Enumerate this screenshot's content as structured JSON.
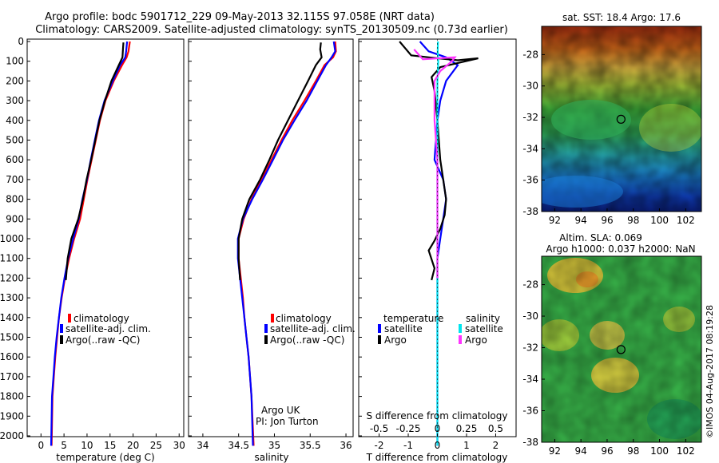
{
  "title_lines": [
    "Argo profile: bodc 5901712_229 09-May-2013 32.115S 97.058E (NRT data)",
    "Climatology: CARS2009. Satellite-adjusted climatology: synTS_20130509.nc (0.73d earlier)"
  ],
  "right_panel": {
    "sst_title": "sat. SST: 18.4  Argo: 17.6",
    "sla_title_1": "Altim. SLA: 0.069",
    "sla_title_2": "Argo h1000: 0.037 h2000: NaN",
    "timestamp": "©IMOS 04-Aug-2017 08:19:28"
  },
  "colors": {
    "climatology": "#ff0000",
    "satellite": "#0000ff",
    "argo": "#000000",
    "sal_satellite": "#00e5ee",
    "sal_argo": "#ff33ff"
  },
  "chart_data": [
    {
      "type": "line",
      "xlabel": "temperature (deg C)",
      "ylabel": "",
      "xlim": [
        -3,
        31
      ],
      "ylim": [
        2060,
        0
      ],
      "xticks": [
        0,
        5,
        10,
        15,
        20,
        25,
        30
      ],
      "yticks": [
        0,
        100,
        200,
        300,
        400,
        500,
        600,
        700,
        800,
        900,
        1000,
        1100,
        1200,
        1300,
        1400,
        1500,
        1600,
        1700,
        1800,
        1900,
        2000
      ],
      "legend_position": "lower-center",
      "legend": [
        "climatology",
        "satellite-adj. clim.",
        "Argo(..raw -QC)"
      ],
      "series": [
        {
          "name": "climatology",
          "color": "#ff0000",
          "x": [
            19.3,
            19.0,
            18.6,
            17.6,
            15.8,
            14.0,
            12.8,
            11.9,
            11.0,
            10.1,
            9.3,
            8.5,
            7.2,
            6.1,
            5.2,
            4.5,
            3.9,
            3.5,
            3.1,
            2.8,
            2.5,
            2.3
          ],
          "y": [
            0,
            50,
            80,
            120,
            200,
            300,
            400,
            500,
            600,
            700,
            800,
            900,
            1000,
            1100,
            1200,
            1300,
            1400,
            1500,
            1600,
            1700,
            1800,
            2050
          ]
        },
        {
          "name": "satellite-adj. clim.",
          "color": "#0000ff",
          "x": [
            18.7,
            18.5,
            18.3,
            17.2,
            15.6,
            13.8,
            12.6,
            11.7,
            10.8,
            10.0,
            9.0,
            8.2,
            7.0,
            5.9,
            5.1,
            4.4,
            3.9,
            3.4,
            3.0,
            2.7,
            2.4,
            2.2
          ],
          "y": [
            0,
            50,
            80,
            120,
            200,
            300,
            400,
            500,
            600,
            700,
            800,
            900,
            1000,
            1100,
            1200,
            1300,
            1400,
            1500,
            1600,
            1700,
            1800,
            2050
          ]
        },
        {
          "name": "Argo(..raw -QC)",
          "color": "#000000",
          "x": [
            17.9,
            17.8,
            17.7,
            16.9,
            15.3,
            13.9,
            12.7,
            11.8,
            10.9,
            9.9,
            9.1,
            8.1,
            6.6,
            5.8,
            5.4
          ],
          "y": [
            5,
            40,
            80,
            120,
            200,
            300,
            400,
            500,
            600,
            700,
            800,
            900,
            1000,
            1100,
            1210
          ]
        }
      ]
    },
    {
      "type": "line",
      "xlabel": "salinity",
      "ylabel": "",
      "xlim": [
        33.8,
        36.1
      ],
      "ylim": [
        2060,
        0
      ],
      "xticks": [
        34,
        34.5,
        35,
        35.5,
        36
      ],
      "legend_position": "lower-center",
      "legend": [
        "climatology",
        "satellite-adj. clim.",
        "Argo(..raw -QC)"
      ],
      "annotations": [
        "Argo UK",
        "PI: Jon Turton"
      ],
      "series": [
        {
          "name": "climatology",
          "color": "#ff0000",
          "x": [
            35.85,
            35.86,
            35.82,
            35.7,
            35.58,
            35.42,
            35.25,
            35.1,
            34.96,
            34.82,
            34.68,
            34.57,
            34.5,
            34.5,
            34.53,
            34.56,
            34.58,
            34.61,
            34.64,
            34.66,
            34.68,
            34.71
          ],
          "y": [
            0,
            50,
            80,
            120,
            200,
            300,
            400,
            500,
            600,
            700,
            800,
            900,
            1000,
            1100,
            1200,
            1300,
            1400,
            1500,
            1600,
            1700,
            1800,
            2050
          ]
        },
        {
          "name": "satellite-adj. clim.",
          "color": "#0000ff",
          "x": [
            35.83,
            35.85,
            35.8,
            35.72,
            35.6,
            35.45,
            35.28,
            35.12,
            34.98,
            34.84,
            34.69,
            34.56,
            34.49,
            34.49,
            34.52,
            34.55,
            34.58,
            34.61,
            34.64,
            34.66,
            34.68,
            34.7
          ],
          "y": [
            0,
            50,
            80,
            120,
            200,
            300,
            400,
            500,
            600,
            700,
            800,
            900,
            1000,
            1100,
            1200,
            1300,
            1400,
            1500,
            1600,
            1700,
            1800,
            2050
          ]
        },
        {
          "name": "Argo(..raw -QC)",
          "color": "#000000",
          "x": [
            35.65,
            35.64,
            35.66,
            35.58,
            35.47,
            35.33,
            35.19,
            35.05,
            34.93,
            34.8,
            34.65,
            34.55,
            34.5,
            34.5,
            34.52
          ],
          "y": [
            5,
            40,
            80,
            120,
            200,
            300,
            400,
            500,
            600,
            700,
            800,
            900,
            1000,
            1100,
            1210
          ]
        }
      ]
    },
    {
      "type": "line",
      "xlabel": "T difference from climatology",
      "xlabel_top": "S difference from climatology",
      "ylabel": "",
      "xlim": [
        -2.7,
        2.7
      ],
      "ylim": [
        2060,
        0
      ],
      "xticks": [
        -2,
        -1,
        0,
        1,
        2
      ],
      "xticks_labels": [
        "-2",
        "-1",
        "0",
        "1",
        "2"
      ],
      "xticks_secondary": [
        -0.5,
        -0.25,
        0,
        0.25,
        0.5
      ],
      "legend_position": "lower-center",
      "legend_groups": [
        {
          "title": "temperature",
          "entries": [
            "satellite",
            "Argo"
          ]
        },
        {
          "title": "salinity",
          "entries": [
            "satellite",
            "Argo"
          ]
        }
      ],
      "series": [
        {
          "name": "temperature satellite",
          "color": "#0000ff",
          "x": [
            -0.6,
            -0.3,
            0.3,
            0.7,
            0.3,
            0.1,
            0.0,
            -0.1,
            0.2,
            0.3,
            0.2,
            0.1,
            0.0,
            0.0,
            0.0
          ],
          "y": [
            0,
            50,
            80,
            120,
            200,
            300,
            400,
            600,
            700,
            800,
            900,
            1000,
            1100,
            1200,
            2050
          ]
        },
        {
          "name": "temperature Argo",
          "color": "#000000",
          "x": [
            -1.3,
            -0.9,
            -0.3,
            0.7,
            1.4,
            0.1,
            -0.2,
            -0.1,
            0.0,
            0.1,
            0.2,
            0.3,
            0.25,
            0.1,
            -0.1,
            -0.3,
            -0.1,
            -0.2
          ],
          "y": [
            0,
            70,
            80,
            95,
            85,
            130,
            180,
            250,
            400,
            600,
            700,
            800,
            880,
            950,
            1010,
            1060,
            1150,
            1210
          ]
        },
        {
          "name": "salinity satellite",
          "color": "#00e5ee",
          "x": [
            0.02,
            0.01,
            0.03,
            0.0,
            0.0,
            0.0,
            0.0,
            0.0
          ],
          "y": [
            0,
            50,
            100,
            200,
            500,
            1000,
            1500,
            2050
          ]
        },
        {
          "name": "salinity Argo",
          "color": "#ff33ff",
          "x": [
            -0.8,
            -0.5,
            0.6,
            0.5,
            0.1,
            -0.1,
            -0.1,
            0.0,
            0.0,
            0.0,
            0.0
          ],
          "y": [
            40,
            90,
            80,
            100,
            150,
            200,
            400,
            600,
            800,
            1000,
            1200
          ]
        }
      ]
    },
    {
      "type": "heatmap",
      "title": "sat. SST: 18.4  Argo: 17.6",
      "xlim": [
        91,
        103.2
      ],
      "ylim": [
        -38,
        -26.2
      ],
      "xticks": [
        92,
        94,
        96,
        98,
        100,
        102
      ],
      "yticks": [
        -28,
        -30,
        -32,
        -34,
        -36,
        -38
      ],
      "marker": {
        "x": 97.06,
        "y": -32.12
      }
    },
    {
      "type": "heatmap",
      "title": "Altim. SLA: 0.069",
      "xlim": [
        91,
        103.2
      ],
      "ylim": [
        -38,
        -26.2
      ],
      "xticks": [
        92,
        94,
        96,
        98,
        100,
        102
      ],
      "yticks": [
        -28,
        -30,
        -32,
        -34,
        -36,
        -38
      ],
      "marker": {
        "x": 97.06,
        "y": -32.12
      }
    }
  ]
}
